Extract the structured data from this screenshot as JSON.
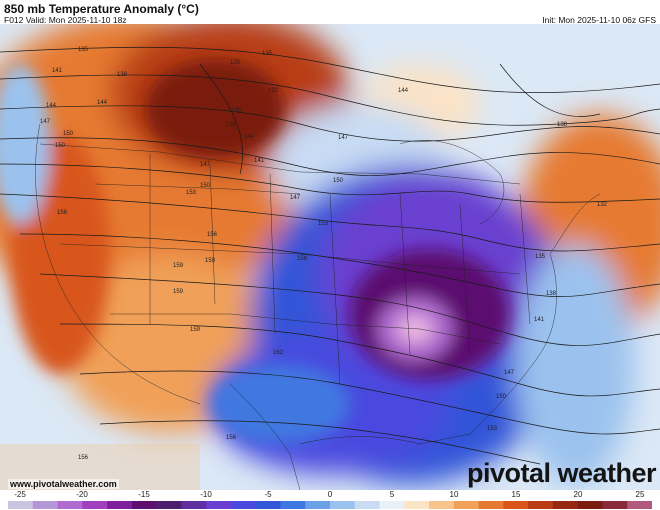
{
  "header": {
    "title": "850 mb Temperature Anomaly (°C)",
    "valid": "F012 Valid: Mon 2025-11-10 18z",
    "init": "Init: Mon 2025-11-10 06z GFS"
  },
  "footer": {
    "url": "www.pivotalweather.com",
    "logo": "pivotal weather"
  },
  "colorbar": {
    "ticks": [
      "-25",
      "-20",
      "-15",
      "-10",
      "-5",
      "0",
      "5",
      "10",
      "15",
      "20",
      "25"
    ],
    "colors": [
      "#c9c4e0",
      "#b497d8",
      "#b06ad0",
      "#a040c0",
      "#7e1fa0",
      "#5c0f70",
      "#4d1e6e",
      "#5f2ea0",
      "#6a3fd0",
      "#4a4adf",
      "#3355d8",
      "#3f78e0",
      "#6aa0e8",
      "#9bc2ee",
      "#c8dcf4",
      "#e8f0f8",
      "#fbe3c6",
      "#f6c48c",
      "#f0a058",
      "#e67a32",
      "#d8561c",
      "#b83c14",
      "#962812",
      "#7a1c10",
      "#8a2a3a",
      "#b05a80"
    ]
  },
  "contours": {
    "labels": [
      "135",
      "141",
      "138",
      "132",
      "125",
      "144",
      "147",
      "150",
      "147",
      "138",
      "135",
      "150",
      "153",
      "156",
      "156",
      "159",
      "159",
      "162",
      "156",
      "147",
      "141",
      "138",
      "135",
      "144",
      "150",
      "153",
      "144",
      "141",
      "147",
      "150",
      "135",
      "138",
      "132",
      "144",
      "147",
      "150",
      "153",
      "156",
      "159",
      "159",
      "156"
    ]
  },
  "map": {
    "features": [
      "850mb-temperature-anomaly",
      "geopotential-height-contours",
      "state-borders"
    ],
    "colors": {
      "warm_dark": "#7a1c10",
      "warm": "#e67a32",
      "neutral": "#ffffff",
      "cold": "#3355d8",
      "cold_deep": "#5c0f70",
      "core": "#e8b6e0"
    }
  }
}
